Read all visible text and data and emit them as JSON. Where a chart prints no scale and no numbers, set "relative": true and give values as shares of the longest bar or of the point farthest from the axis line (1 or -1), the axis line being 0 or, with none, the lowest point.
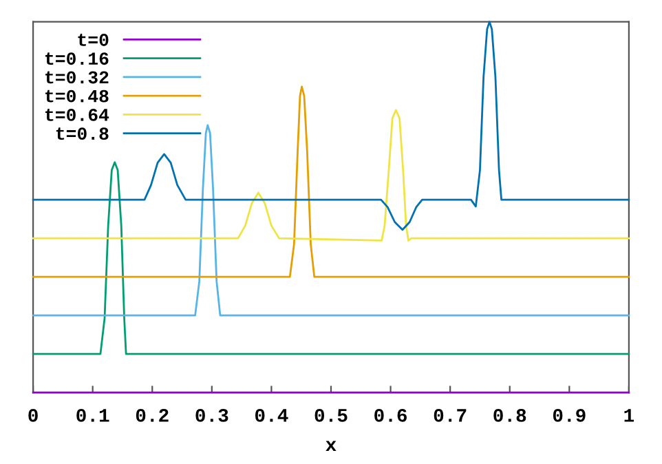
{
  "chart_data": {
    "type": "line",
    "relative": true,
    "xlabel": "x",
    "xlim": [
      0,
      1
    ],
    "xticks": [
      0,
      0.1,
      0.2,
      0.3,
      0.4,
      0.5,
      0.6,
      0.7,
      0.8,
      0.9,
      1
    ],
    "tick_labels": "x",
    "legend": "top left",
    "grid": false,
    "marker": "none",
    "line_style": "solid",
    "series": [
      {
        "name": "t=0",
        "color": "#9400d3",
        "x": [
          0,
          1
        ],
        "values": [
          0,
          0
        ]
      },
      {
        "name": "t=0.16",
        "color": "#009e73",
        "x": [
          0,
          0.113,
          0.12,
          0.126,
          0.132,
          0.137,
          0.142,
          0.148,
          0.153,
          0.156,
          1
        ],
        "values": [
          0.104,
          0.104,
          0.2,
          0.45,
          0.6,
          0.621,
          0.6,
          0.45,
          0.2,
          0.104,
          0.104
        ]
      },
      {
        "name": "t=0.32",
        "color": "#56b4e9",
        "x": [
          0,
          0.272,
          0.279,
          0.285,
          0.29,
          0.293,
          0.297,
          0.302,
          0.308,
          0.314,
          1
        ],
        "values": [
          0.208,
          0.208,
          0.3,
          0.55,
          0.7,
          0.721,
          0.7,
          0.55,
          0.3,
          0.208,
          0.208
        ]
      },
      {
        "name": "t=0.48",
        "color": "#e69f00",
        "x": [
          0,
          0.431,
          0.438,
          0.444,
          0.448,
          0.451,
          0.455,
          0.46,
          0.466,
          0.472,
          1
        ],
        "values": [
          0.312,
          0.312,
          0.4,
          0.65,
          0.8,
          0.825,
          0.8,
          0.65,
          0.4,
          0.312,
          0.312
        ]
      },
      {
        "name": "t=0.64",
        "color": "#f0e442",
        "x": [
          0,
          0.344,
          0.356,
          0.367,
          0.378,
          0.389,
          0.4,
          0.413,
          0.585,
          0.59,
          0.597,
          0.603,
          0.609,
          0.615,
          0.621,
          0.626,
          0.63,
          0.635,
          1
        ],
        "values": [
          0.416,
          0.416,
          0.45,
          0.51,
          0.539,
          0.51,
          0.45,
          0.416,
          0.41,
          0.45,
          0.6,
          0.74,
          0.762,
          0.74,
          0.6,
          0.45,
          0.41,
          0.416,
          0.416
        ]
      },
      {
        "name": "t=0.8",
        "color": "#0072b2",
        "x": [
          0,
          0.187,
          0.198,
          0.209,
          0.22,
          0.231,
          0.242,
          0.256,
          0.584,
          0.595,
          0.607,
          0.62,
          0.632,
          0.643,
          0.653,
          0.735,
          0.743,
          0.75,
          0.756,
          0.762,
          0.766,
          0.77,
          0.776,
          0.782,
          0.786,
          1
        ],
        "values": [
          0.52,
          0.52,
          0.56,
          0.62,
          0.643,
          0.62,
          0.56,
          0.52,
          0.52,
          0.5,
          0.46,
          0.439,
          0.46,
          0.5,
          0.52,
          0.52,
          0.502,
          0.6,
          0.85,
          0.98,
          1,
          0.98,
          0.85,
          0.6,
          0.52,
          0.52
        ]
      }
    ]
  }
}
